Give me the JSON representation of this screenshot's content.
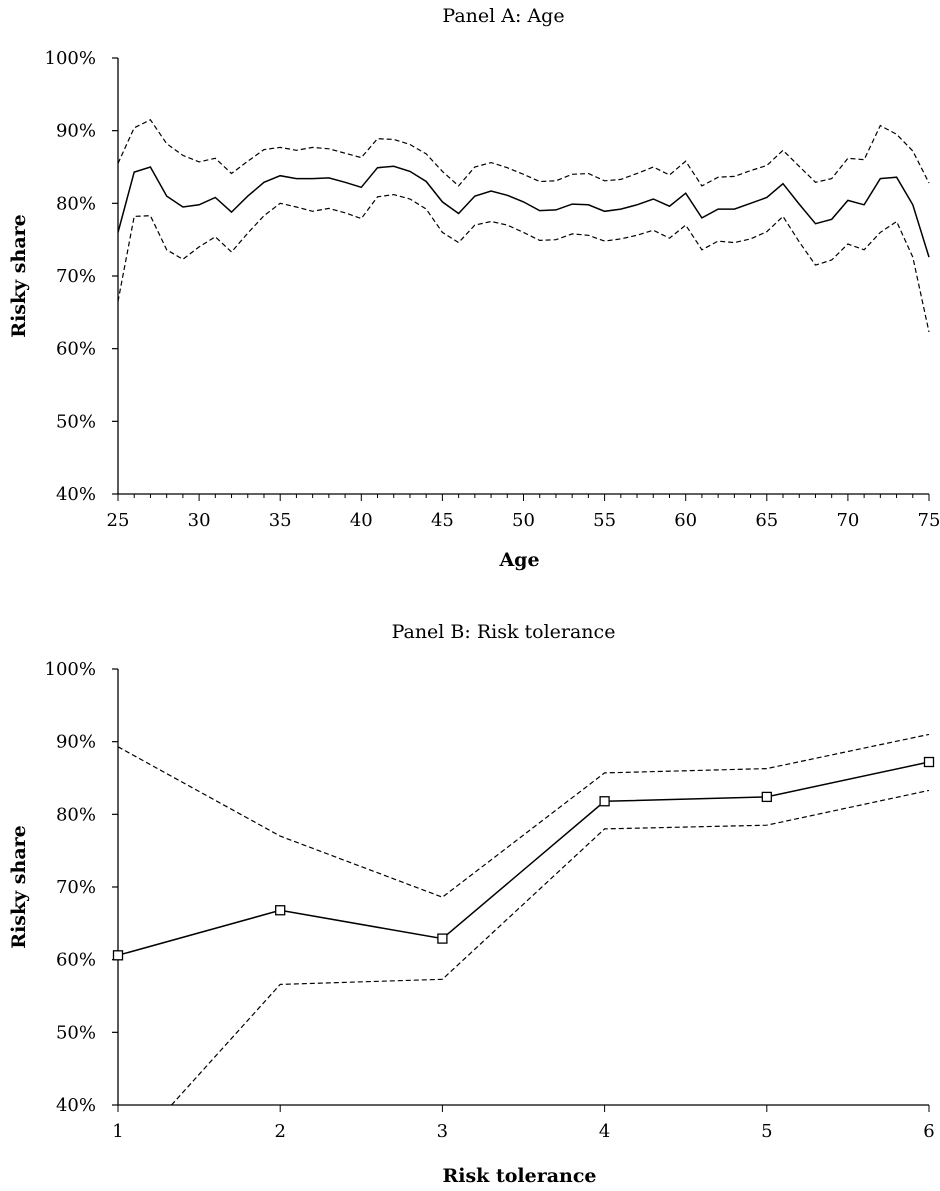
{
  "chart_data": [
    {
      "type": "line",
      "title": "Panel A: Age",
      "xlabel": "Age",
      "ylabel": "Risky share",
      "xlim": [
        25,
        75
      ],
      "ylim": [
        40,
        100
      ],
      "x_ticks": [
        "25",
        "30",
        "35",
        "40",
        "45",
        "50",
        "55",
        "60",
        "65",
        "70",
        "75"
      ],
      "y_ticks": [
        "40%",
        "50%",
        "60%",
        "70%",
        "80%",
        "90%",
        "100%"
      ],
      "x": [
        25,
        26,
        27,
        28,
        29,
        30,
        31,
        32,
        33,
        34,
        35,
        36,
        37,
        38,
        39,
        40,
        41,
        42,
        43,
        44,
        45,
        46,
        47,
        48,
        49,
        50,
        51,
        52,
        53,
        54,
        55,
        56,
        57,
        58,
        59,
        60,
        61,
        62,
        63,
        64,
        65,
        66,
        67,
        68,
        69,
        70,
        71,
        72,
        73,
        74,
        75
      ],
      "series": [
        {
          "style": "solid",
          "values": [
            76.0,
            84.3,
            85.0,
            81.0,
            79.5,
            79.8,
            80.8,
            78.8,
            81.0,
            82.9,
            83.8,
            83.4,
            83.4,
            83.5,
            82.9,
            82.2,
            84.9,
            85.1,
            84.4,
            83.0,
            80.2,
            78.6,
            81.0,
            81.7,
            81.1,
            80.2,
            79.0,
            79.1,
            79.9,
            79.8,
            78.9,
            79.2,
            79.8,
            80.6,
            79.6,
            81.4,
            78.0,
            79.2,
            79.2,
            80.0,
            80.8,
            82.7,
            79.9,
            77.2,
            77.8,
            80.4,
            79.8,
            83.4,
            83.6,
            79.8,
            72.6
          ]
        },
        {
          "style": "dashed",
          "values": [
            85.5,
            90.4,
            91.5,
            88.2,
            86.6,
            85.7,
            86.2,
            84.1,
            85.8,
            87.4,
            87.7,
            87.3,
            87.7,
            87.5,
            86.9,
            86.3,
            88.9,
            88.8,
            88.1,
            86.8,
            84.4,
            82.4,
            85.0,
            85.6,
            84.9,
            84.0,
            83.0,
            83.1,
            84.0,
            84.1,
            83.1,
            83.3,
            84.1,
            85.0,
            83.9,
            85.8,
            82.4,
            83.6,
            83.7,
            84.5,
            85.2,
            87.3,
            85.1,
            82.9,
            83.4,
            86.2,
            86.0,
            90.7,
            89.5,
            87.2,
            82.8
          ]
        },
        {
          "style": "dashed",
          "values": [
            66.5,
            78.2,
            78.3,
            73.6,
            72.3,
            74.0,
            75.4,
            73.3,
            75.9,
            78.3,
            80.0,
            79.5,
            78.9,
            79.3,
            78.7,
            77.9,
            80.9,
            81.2,
            80.6,
            79.2,
            76.0,
            74.6,
            77.0,
            77.5,
            77.0,
            76.0,
            74.9,
            75.0,
            75.8,
            75.6,
            74.8,
            75.1,
            75.6,
            76.3,
            75.2,
            77.0,
            73.6,
            74.8,
            74.6,
            75.1,
            76.1,
            78.2,
            74.7,
            71.5,
            72.2,
            74.4,
            73.6,
            76.0,
            77.5,
            72.6,
            62.3
          ]
        }
      ]
    },
    {
      "type": "line",
      "title": "Panel B: Risk tolerance",
      "xlabel": "Risk tolerance",
      "ylabel": "Risky share",
      "xlim": [
        1,
        6
      ],
      "ylim": [
        40,
        100
      ],
      "x_ticks": [
        "1",
        "2",
        "3",
        "4",
        "5",
        "6"
      ],
      "y_ticks": [
        "40%",
        "50%",
        "60%",
        "70%",
        "80%",
        "90%",
        "100%"
      ],
      "x": [
        1,
        2,
        3,
        4,
        5,
        6
      ],
      "series": [
        {
          "style": "solid-markers",
          "values": [
            60.6,
            66.8,
            62.9,
            81.8,
            82.4,
            87.2
          ]
        },
        {
          "style": "dashed",
          "values": [
            89.3,
            77.0,
            68.6,
            85.7,
            86.3,
            91.0
          ]
        },
        {
          "style": "dashed",
          "x": [
            1.33,
            2,
            3,
            4,
            5,
            6
          ],
          "values": [
            40.0,
            56.6,
            57.3,
            78.0,
            78.5,
            83.3
          ]
        }
      ]
    }
  ]
}
